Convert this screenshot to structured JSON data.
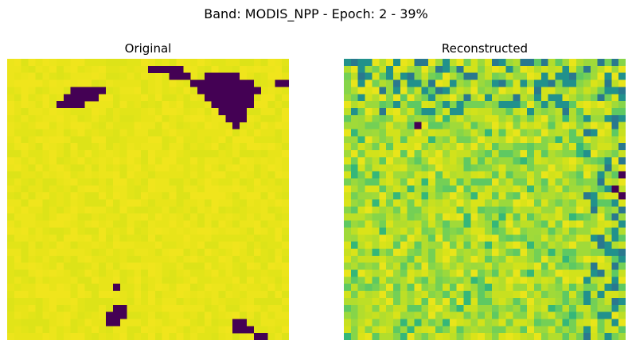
{
  "figure": {
    "suptitle": "Band: MODIS_NPP - Epoch: 2 - 39%"
  },
  "panels": [
    {
      "title": "Original",
      "colormap": "viridis"
    },
    {
      "title": "Reconstructed",
      "colormap": "viridis"
    }
  ],
  "colors": {
    "background": "#ffffff",
    "dark": "#440154",
    "yellow": "#e9e51a",
    "yellow_green": "#bddf26",
    "green": "#5ec962",
    "teal": "#21918c",
    "lime": "#a0da39"
  }
}
